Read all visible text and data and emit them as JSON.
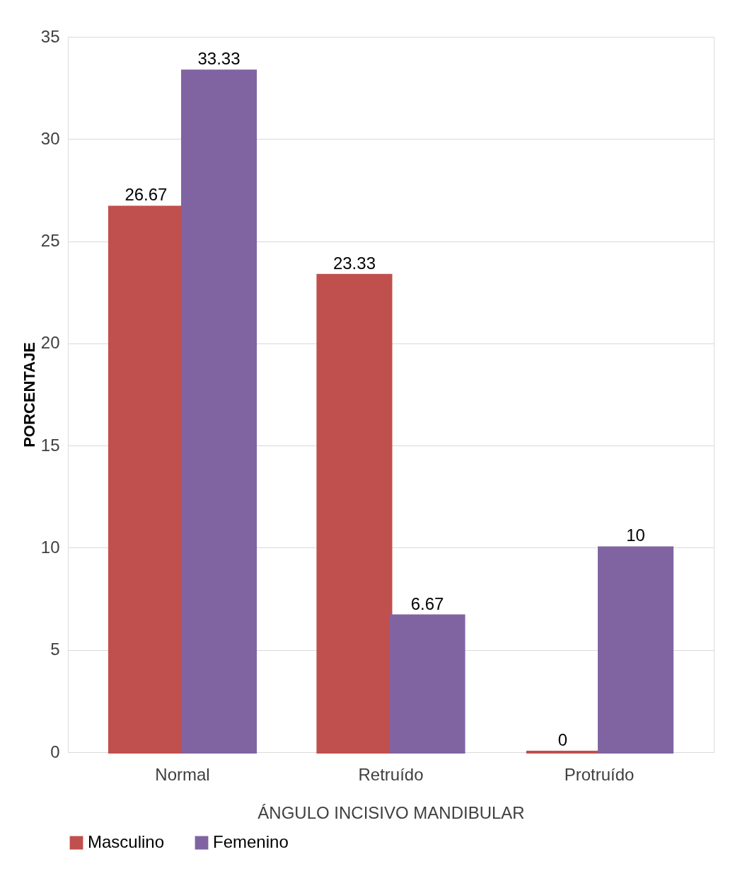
{
  "chart_data": {
    "type": "bar",
    "xlabel": "ÁNGULO INCISIVO MANDIBULAR",
    "ylabel": "PORCENTAJE",
    "categories": [
      "Normal",
      "Retruído",
      "Protruído"
    ],
    "series": [
      {
        "name": "Masculino",
        "color": "#c0504d",
        "values": [
          26.67,
          23.33,
          0
        ]
      },
      {
        "name": "Femenino",
        "color": "#8064a2",
        "values": [
          33.33,
          6.67,
          10
        ]
      }
    ],
    "ylim": [
      0,
      35
    ],
    "yticks": [
      0,
      5,
      10,
      15,
      20,
      25,
      30,
      35
    ],
    "grid": "y",
    "legend": "bottom",
    "data_labels": true
  }
}
